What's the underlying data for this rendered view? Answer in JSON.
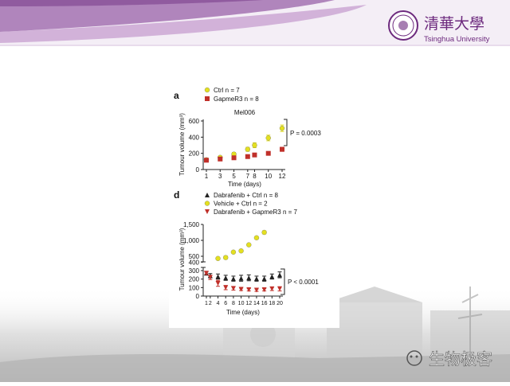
{
  "header": {
    "logo_chinese": "清華大學",
    "logo_english": "Tsinghua University"
  },
  "watermark": {
    "label": "生物极客"
  },
  "chart_data": [
    {
      "panel": "a",
      "type": "scatter",
      "title": "Mel006",
      "xlabel": "Time (days)",
      "ylabel": "Tumour volume (mm³)",
      "xticks": [
        "1",
        "3",
        "5",
        "7",
        "8",
        "10",
        "12"
      ],
      "yticks": [
        "0",
        "200",
        "400",
        "600"
      ],
      "ylim": [
        0,
        650
      ],
      "legend_placement": "top-left",
      "annotation": "P = 0.0003",
      "series": [
        {
          "name": "Ctrl n = 7",
          "color": "#e4e020",
          "marker": "circle",
          "x": [
            1,
            3,
            5,
            7,
            8,
            10,
            12
          ],
          "y": [
            120,
            150,
            190,
            250,
            300,
            390,
            510
          ],
          "err": [
            10,
            15,
            20,
            25,
            30,
            35,
            40
          ]
        },
        {
          "name": "GapmeR3 n = 8",
          "color": "#c0302a",
          "marker": "square",
          "x": [
            1,
            3,
            5,
            7,
            8,
            10,
            12
          ],
          "y": [
            115,
            130,
            145,
            160,
            180,
            200,
            250
          ],
          "err": [
            8,
            10,
            12,
            14,
            16,
            18,
            25
          ]
        }
      ]
    },
    {
      "panel": "d",
      "type": "scatter",
      "xlabel": "Time (days)",
      "ylabel": "Tumour volume (mm³)",
      "xticks": [
        "1",
        "2",
        "4",
        "6",
        "8",
        "10",
        "12",
        "14",
        "16",
        "18",
        "20"
      ],
      "yticks": [
        "0",
        "100",
        "200",
        "300",
        "400",
        "500",
        "1,000",
        "1,500"
      ],
      "axis_break": "between 400 and 500",
      "legend_placement": "top-left",
      "annotation": "P < 0.0001",
      "series": [
        {
          "name": "Dabrafenib + Ctrl n = 8",
          "color": "#222222",
          "marker": "triangle-up",
          "x": [
            1,
            2,
            4,
            6,
            8,
            10,
            12,
            14,
            16,
            18,
            20
          ],
          "y": [
            270,
            240,
            230,
            215,
            205,
            210,
            215,
            205,
            205,
            230,
            250
          ],
          "err": [
            20,
            25,
            30,
            30,
            30,
            35,
            35,
            30,
            30,
            30,
            35
          ]
        },
        {
          "name": "Vehicle + Ctrl n = 2",
          "color": "#e4e020",
          "marker": "circle",
          "x": [
            4,
            6,
            8,
            10,
            12,
            14,
            16
          ],
          "y": [
            430,
            460,
            630,
            670,
            860,
            1080,
            1250
          ],
          "err": [
            10,
            50,
            20,
            20,
            20,
            40,
            50
          ]
        },
        {
          "name": "Dabrafenib + GapmeR3 n = 7",
          "color": "#c0302a",
          "marker": "triangle-down",
          "x": [
            1,
            2,
            4,
            6,
            8,
            10,
            12,
            14,
            16,
            18,
            20
          ],
          "y": [
            270,
            220,
            150,
            100,
            90,
            80,
            75,
            70,
            75,
            85,
            85
          ],
          "err": [
            15,
            25,
            35,
            25,
            20,
            15,
            15,
            15,
            15,
            20,
            25
          ]
        }
      ]
    }
  ]
}
